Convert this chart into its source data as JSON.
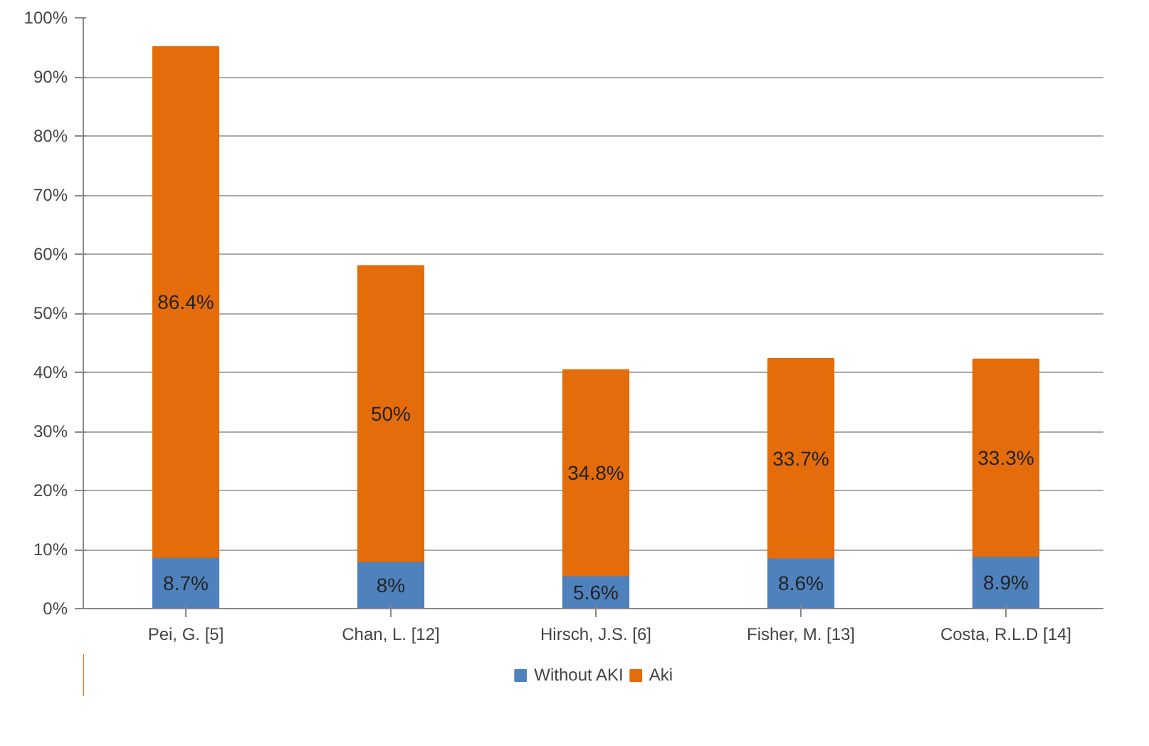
{
  "chart_data": {
    "type": "bar",
    "stacked": true,
    "categories": [
      "Pei, G. [5]",
      "Chan, L. [12]",
      "Hirsch, J.S. [6]",
      "Fisher, M. [13]",
      "Costa, R.L.D [14]"
    ],
    "series": [
      {
        "name": "Without AKI",
        "color": "#4f81bd",
        "values": [
          8.7,
          8,
          5.6,
          8.6,
          8.9
        ],
        "value_labels": [
          "8.7%",
          "8%",
          "5.6%",
          "8.6%",
          "8.9%"
        ]
      },
      {
        "name": "Aki",
        "color": "#e46c0a",
        "values": [
          86.4,
          50,
          34.8,
          33.7,
          33.3
        ],
        "value_labels": [
          "86.4%",
          "50%",
          "34.8%",
          "33.7%",
          "33.3%"
        ]
      }
    ],
    "ylim": [
      0,
      100
    ],
    "yticks": [
      {
        "value": 0,
        "label": "0%"
      },
      {
        "value": 10,
        "label": "10%"
      },
      {
        "value": 20,
        "label": "20%"
      },
      {
        "value": 30,
        "label": "30%"
      },
      {
        "value": 40,
        "label": "40%"
      },
      {
        "value": 50,
        "label": "50%"
      },
      {
        "value": 60,
        "label": "60%"
      },
      {
        "value": 70,
        "label": "70%"
      },
      {
        "value": 80,
        "label": "80%"
      },
      {
        "value": 90,
        "label": "90%"
      },
      {
        "value": 100,
        "label": "100%"
      }
    ],
    "grid": "y",
    "legend": "bottom"
  }
}
